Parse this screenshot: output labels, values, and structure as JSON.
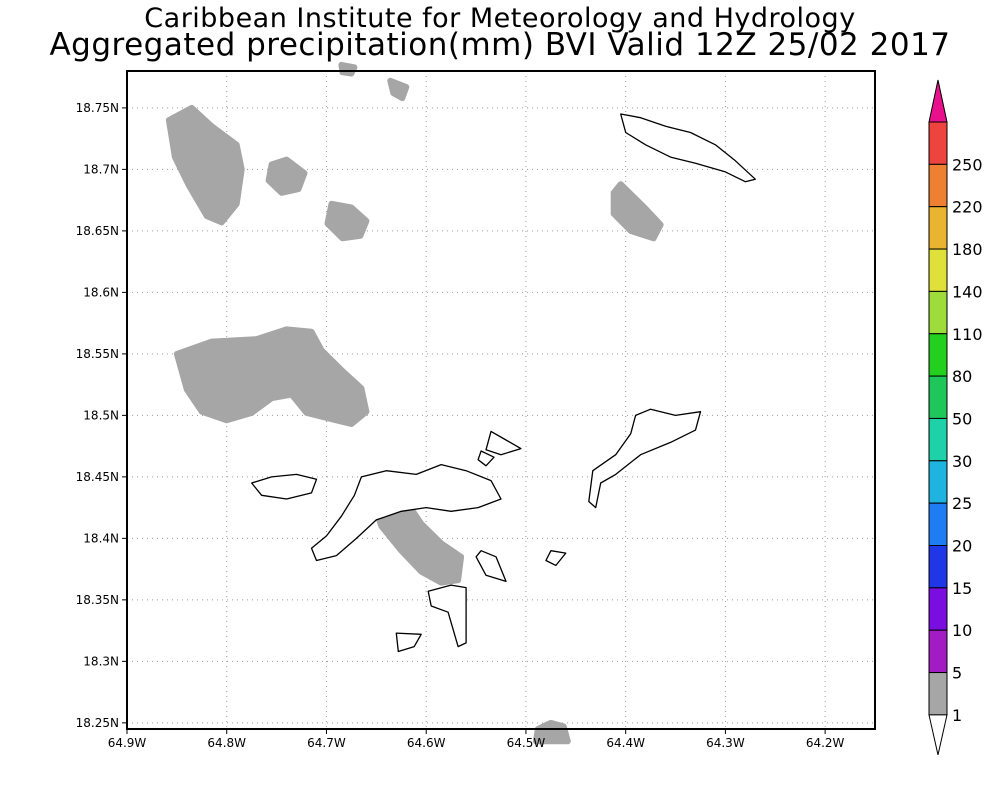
{
  "title_line1": "Caribbean Institute for Meteorology and Hydrology",
  "title_line2": "Aggregated precipitation(mm) BVI Valid 12Z 25/02 2017",
  "map": {
    "lon_range": [
      -64.9,
      -64.15
    ],
    "lat_range": [
      18.245,
      18.78
    ],
    "grid": true,
    "lon_ticks": [
      {
        "v": -64.9,
        "label": "64.9W"
      },
      {
        "v": -64.8,
        "label": "64.8W"
      },
      {
        "v": -64.7,
        "label": "64.7W"
      },
      {
        "v": -64.6,
        "label": "64.6W"
      },
      {
        "v": -64.5,
        "label": "64.5W"
      },
      {
        "v": -64.4,
        "label": "64.4W"
      },
      {
        "v": -64.3,
        "label": "64.3W"
      },
      {
        "v": -64.2,
        "label": "64.2W"
      }
    ],
    "lat_ticks": [
      {
        "v": 18.75,
        "label": "18.75N"
      },
      {
        "v": 18.7,
        "label": "18.7N"
      },
      {
        "v": 18.65,
        "label": "18.65N"
      },
      {
        "v": 18.6,
        "label": "18.6N"
      },
      {
        "v": 18.55,
        "label": "18.55N"
      },
      {
        "v": 18.5,
        "label": "18.5N"
      },
      {
        "v": 18.45,
        "label": "18.45N"
      },
      {
        "v": 18.4,
        "label": "18.4N"
      },
      {
        "v": 18.35,
        "label": "18.35N"
      },
      {
        "v": 18.3,
        "label": "18.3N"
      },
      {
        "v": 18.25,
        "label": "18.25N"
      }
    ]
  },
  "precip_areas": [
    {
      "category": "1-5",
      "points": [
        [
          -64.835,
          18.75
        ],
        [
          -64.815,
          18.735
        ],
        [
          -64.79,
          18.72
        ],
        [
          -64.785,
          18.7
        ],
        [
          -64.79,
          18.672
        ],
        [
          -64.805,
          18.657
        ],
        [
          -64.82,
          18.662
        ],
        [
          -64.838,
          18.687
        ],
        [
          -64.852,
          18.71
        ],
        [
          -64.858,
          18.74
        ]
      ]
    },
    {
      "category": "1-5",
      "points": [
        [
          -64.755,
          18.704
        ],
        [
          -64.74,
          18.708
        ],
        [
          -64.722,
          18.697
        ],
        [
          -64.728,
          18.684
        ],
        [
          -64.745,
          18.681
        ],
        [
          -64.758,
          18.691
        ]
      ]
    },
    {
      "category": "1-5",
      "points": [
        [
          -64.695,
          18.672
        ],
        [
          -64.675,
          18.669
        ],
        [
          -64.66,
          18.658
        ],
        [
          -64.666,
          18.646
        ],
        [
          -64.684,
          18.644
        ],
        [
          -64.699,
          18.656
        ]
      ]
    },
    {
      "category": "1-5",
      "points": [
        [
          -64.636,
          18.772
        ],
        [
          -64.62,
          18.767
        ],
        [
          -64.624,
          18.758
        ],
        [
          -64.633,
          18.762
        ]
      ]
    },
    {
      "category": "1-5",
      "points": [
        [
          -64.685,
          18.785
        ],
        [
          -64.672,
          18.783
        ],
        [
          -64.675,
          18.778
        ],
        [
          -64.684,
          18.779
        ]
      ]
    },
    {
      "category": "1-5",
      "points": [
        [
          -64.405,
          18.688
        ],
        [
          -64.38,
          18.668
        ],
        [
          -64.365,
          18.655
        ],
        [
          -64.372,
          18.644
        ],
        [
          -64.395,
          18.65
        ],
        [
          -64.412,
          18.664
        ],
        [
          -64.412,
          18.681
        ]
      ]
    },
    {
      "category": "1-5",
      "points": [
        [
          -64.85,
          18.55
        ],
        [
          -64.815,
          18.56
        ],
        [
          -64.77,
          18.562
        ],
        [
          -64.74,
          18.57
        ],
        [
          -64.715,
          18.568
        ],
        [
          -64.705,
          18.553
        ],
        [
          -64.685,
          18.537
        ],
        [
          -64.665,
          18.522
        ],
        [
          -64.66,
          18.503
        ],
        [
          -64.675,
          18.493
        ],
        [
          -64.69,
          18.496
        ],
        [
          -64.72,
          18.502
        ],
        [
          -64.735,
          18.517
        ],
        [
          -64.755,
          18.514
        ],
        [
          -64.775,
          18.502
        ],
        [
          -64.8,
          18.496
        ],
        [
          -64.825,
          18.503
        ],
        [
          -64.84,
          18.521
        ]
      ]
    },
    {
      "category": "1-5",
      "points": [
        [
          -64.645,
          18.437
        ],
        [
          -64.62,
          18.43
        ],
        [
          -64.605,
          18.412
        ],
        [
          -64.585,
          18.396
        ],
        [
          -64.565,
          18.385
        ],
        [
          -64.568,
          18.366
        ],
        [
          -64.585,
          18.364
        ],
        [
          -64.605,
          18.373
        ],
        [
          -64.625,
          18.39
        ],
        [
          -64.645,
          18.41
        ],
        [
          -64.652,
          18.428
        ]
      ]
    },
    {
      "category": "1-5",
      "points": [
        [
          -64.488,
          18.245
        ],
        [
          -64.475,
          18.25
        ],
        [
          -64.462,
          18.247
        ],
        [
          -64.458,
          18.235
        ],
        [
          -64.49,
          18.235
        ]
      ]
    }
  ],
  "islands": [
    {
      "points": [
        [
          -64.405,
          18.745
        ],
        [
          -64.385,
          18.742
        ],
        [
          -64.36,
          18.735
        ],
        [
          -64.335,
          18.73
        ],
        [
          -64.31,
          18.72
        ],
        [
          -64.29,
          18.707
        ],
        [
          -64.27,
          18.692
        ],
        [
          -64.28,
          18.69
        ],
        [
          -64.3,
          18.698
        ],
        [
          -64.33,
          18.705
        ],
        [
          -64.355,
          18.71
        ],
        [
          -64.38,
          18.72
        ],
        [
          -64.4,
          18.73
        ]
      ]
    },
    {
      "points": [
        [
          -64.665,
          18.45
        ],
        [
          -64.64,
          18.455
        ],
        [
          -64.61,
          18.452
        ],
        [
          -64.585,
          18.46
        ],
        [
          -64.56,
          18.455
        ],
        [
          -64.535,
          18.447
        ],
        [
          -64.525,
          18.432
        ],
        [
          -64.548,
          18.425
        ],
        [
          -64.575,
          18.422
        ],
        [
          -64.6,
          18.425
        ],
        [
          -64.625,
          18.422
        ],
        [
          -64.65,
          18.415
        ],
        [
          -64.67,
          18.4
        ],
        [
          -64.69,
          18.386
        ],
        [
          -64.71,
          18.382
        ],
        [
          -64.715,
          18.392
        ],
        [
          -64.7,
          18.402
        ],
        [
          -64.685,
          18.418
        ],
        [
          -64.672,
          18.435
        ]
      ]
    },
    {
      "points": [
        [
          -64.775,
          18.445
        ],
        [
          -64.755,
          18.45
        ],
        [
          -64.73,
          18.452
        ],
        [
          -64.71,
          18.448
        ],
        [
          -64.715,
          18.437
        ],
        [
          -64.74,
          18.432
        ],
        [
          -64.765,
          18.435
        ]
      ]
    },
    {
      "points": [
        [
          -64.598,
          18.357
        ],
        [
          -64.575,
          18.362
        ],
        [
          -64.56,
          18.36
        ],
        [
          -64.56,
          18.315
        ],
        [
          -64.568,
          18.312
        ],
        [
          -64.578,
          18.34
        ],
        [
          -64.595,
          18.345
        ]
      ]
    },
    {
      "points": [
        [
          -64.63,
          18.323
        ],
        [
          -64.605,
          18.322
        ],
        [
          -64.612,
          18.312
        ],
        [
          -64.628,
          18.308
        ]
      ]
    },
    {
      "points": [
        [
          -64.375,
          18.505
        ],
        [
          -64.35,
          18.5
        ],
        [
          -64.325,
          18.503
        ],
        [
          -64.33,
          18.488
        ],
        [
          -64.355,
          18.478
        ],
        [
          -64.385,
          18.468
        ],
        [
          -64.41,
          18.452
        ],
        [
          -64.425,
          18.445
        ],
        [
          -64.43,
          18.425
        ],
        [
          -64.437,
          18.43
        ],
        [
          -64.433,
          18.455
        ],
        [
          -64.41,
          18.468
        ],
        [
          -64.395,
          18.485
        ],
        [
          -64.39,
          18.5
        ]
      ]
    },
    {
      "points": [
        [
          -64.535,
          18.487
        ],
        [
          -64.52,
          18.48
        ],
        [
          -64.505,
          18.473
        ],
        [
          -64.525,
          18.468
        ],
        [
          -64.54,
          18.472
        ]
      ]
    },
    {
      "points": [
        [
          -64.545,
          18.39
        ],
        [
          -64.53,
          18.385
        ],
        [
          -64.52,
          18.365
        ],
        [
          -64.54,
          18.37
        ],
        [
          -64.55,
          18.385
        ]
      ]
    },
    {
      "points": [
        [
          -64.475,
          18.39
        ],
        [
          -64.46,
          18.388
        ],
        [
          -64.47,
          18.378
        ],
        [
          -64.48,
          18.382
        ]
      ]
    },
    {
      "points": [
        [
          -64.545,
          18.471
        ],
        [
          -64.532,
          18.466
        ],
        [
          -64.54,
          18.459
        ],
        [
          -64.548,
          18.464
        ]
      ]
    }
  ],
  "colorbar": {
    "labels": [
      "1",
      "5",
      "10",
      "15",
      "20",
      "25",
      "30",
      "50",
      "80",
      "110",
      "140",
      "180",
      "220",
      "250"
    ],
    "colors": [
      "#a6a6a6",
      "#a21cc4",
      "#7a0ee0",
      "#1f37e6",
      "#1e7df2",
      "#1fb4e0",
      "#1fd1a8",
      "#1fc65a",
      "#23d01e",
      "#9ddc3a",
      "#dfe13a",
      "#e8b432",
      "#ee8032",
      "#ee4440",
      "#e8108c"
    ],
    "low_tip_color": "#ffffff"
  }
}
